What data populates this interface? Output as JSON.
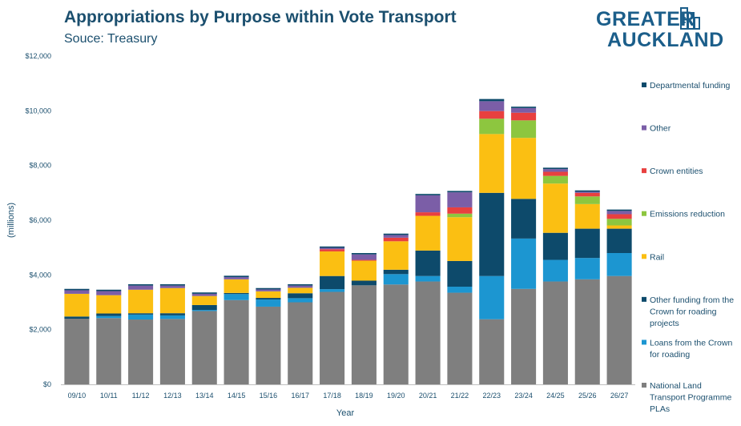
{
  "title": "Appropriations by Purpose within Vote Transport",
  "subtitle": "Souce: Treasury",
  "logo": {
    "line1": "GREATER",
    "line2": "AUCKLAND"
  },
  "chart_data": {
    "type": "bar",
    "stacked": true,
    "xlabel": "Year",
    "ylabel": "(millions)",
    "ylim": [
      0,
      12000
    ],
    "yticks": [
      0,
      2000,
      4000,
      6000,
      8000,
      10000,
      12000
    ],
    "ytick_labels": [
      "$0",
      "$2,000",
      "$4,000",
      "$6,000",
      "$8,000",
      "$10,000",
      "$12,000"
    ],
    "grid": false,
    "legend_position": "right",
    "categories": [
      "09/10",
      "10/11",
      "11/12",
      "12/13",
      "13/14",
      "14/15",
      "15/16",
      "16/17",
      "17/18",
      "18/19",
      "19/20",
      "20/21",
      "21/22",
      "22/23",
      "23/24",
      "24/25",
      "25/26",
      "26/27"
    ],
    "series": [
      {
        "name": "National Land Transport Programme PLAs",
        "color": "#7f7f7f",
        "values": [
          2400,
          2420,
          2370,
          2390,
          2680,
          3080,
          2840,
          3000,
          3380,
          3620,
          3650,
          3760,
          3350,
          2380,
          3490,
          3760,
          3840,
          3960
        ]
      },
      {
        "name": "Loans from the Crown for roading",
        "color": "#1c96d1",
        "values": [
          0,
          80,
          180,
          130,
          40,
          220,
          260,
          150,
          100,
          0,
          380,
          200,
          220,
          1580,
          1840,
          790,
          780,
          840
        ]
      },
      {
        "name": "Other funding from the Crown for roading projects",
        "color": "#0d4a6b",
        "values": [
          80,
          90,
          50,
          80,
          180,
          40,
          60,
          180,
          480,
          170,
          160,
          930,
          940,
          3040,
          1450,
          990,
          1070,
          890
        ]
      },
      {
        "name": "Rail",
        "color": "#fbbf12",
        "values": [
          830,
          670,
          860,
          920,
          330,
          500,
          240,
          200,
          900,
          730,
          1040,
          1270,
          1600,
          2150,
          2230,
          1800,
          900,
          120
        ]
      },
      {
        "name": "Emissions reduction",
        "color": "#8dc63f",
        "values": [
          0,
          0,
          0,
          0,
          0,
          0,
          0,
          0,
          0,
          0,
          0,
          0,
          130,
          560,
          640,
          280,
          280,
          240
        ]
      },
      {
        "name": "Crown entities",
        "color": "#e8403f",
        "values": [
          0,
          0,
          0,
          0,
          0,
          0,
          0,
          0,
          80,
          30,
          130,
          130,
          230,
          280,
          280,
          150,
          130,
          170
        ]
      },
      {
        "name": "Other",
        "color": "#7b5ea7",
        "values": [
          130,
          150,
          150,
          90,
          80,
          80,
          70,
          80,
          50,
          200,
          100,
          620,
          550,
          360,
          170,
          100,
          40,
          120
        ]
      },
      {
        "name": "Departmental funding",
        "color": "#0d4a6b",
        "values": [
          50,
          50,
          50,
          50,
          50,
          50,
          50,
          50,
          50,
          50,
          50,
          50,
          50,
          80,
          50,
          50,
          50,
          50
        ]
      }
    ]
  }
}
